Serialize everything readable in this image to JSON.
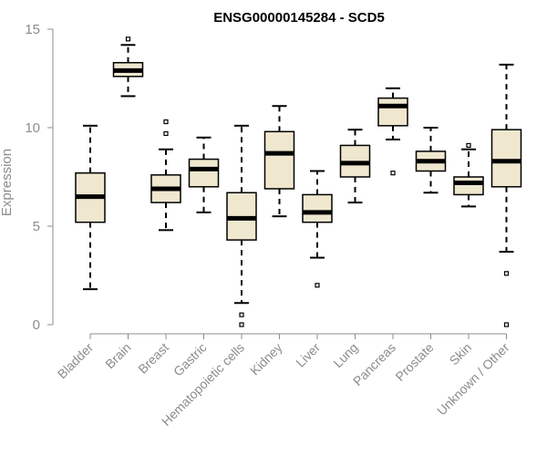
{
  "chart_data": {
    "type": "box",
    "title": "ENSG00000145284 - SCD5",
    "xlabel": "",
    "ylabel": "Expression",
    "ylim": [
      0,
      15
    ],
    "yticks": [
      0,
      5,
      10,
      15
    ],
    "grid": false,
    "colors": {
      "box_fill": "#efe8cf",
      "stroke": "#000000",
      "axis": "#8c8c8c",
      "text": "#8c8c8c"
    },
    "categories": [
      "Bladder",
      "Brain",
      "Breast",
      "Gastric",
      "Hematopoietic cells",
      "Kidney",
      "Liver",
      "Lung",
      "Pancreas",
      "Prostate",
      "Skin",
      "Unknown / Other"
    ],
    "boxes": [
      {
        "category": "Bladder",
        "min": 1.8,
        "q1": 5.2,
        "median": 6.5,
        "q3": 7.7,
        "max": 10.1,
        "outliers": []
      },
      {
        "category": "Brain",
        "min": 11.6,
        "q1": 12.6,
        "median": 12.9,
        "q3": 13.3,
        "max": 14.2,
        "outliers": [
          14.5
        ]
      },
      {
        "category": "Breast",
        "min": 4.8,
        "q1": 6.2,
        "median": 6.9,
        "q3": 7.6,
        "max": 8.9,
        "outliers": [
          10.3,
          9.7
        ]
      },
      {
        "category": "Gastric",
        "min": 5.7,
        "q1": 7.0,
        "median": 7.9,
        "q3": 8.4,
        "max": 9.5,
        "outliers": []
      },
      {
        "category": "Hematopoietic cells",
        "min": 1.1,
        "q1": 4.3,
        "median": 5.4,
        "q3": 6.7,
        "max": 10.1,
        "outliers": [
          0.5,
          0.0
        ]
      },
      {
        "category": "Kidney",
        "min": 5.5,
        "q1": 6.9,
        "median": 8.7,
        "q3": 9.8,
        "max": 11.1,
        "outliers": []
      },
      {
        "category": "Liver",
        "min": 3.4,
        "q1": 5.2,
        "median": 5.7,
        "q3": 6.6,
        "max": 7.8,
        "outliers": [
          2.0
        ]
      },
      {
        "category": "Lung",
        "min": 6.2,
        "q1": 7.5,
        "median": 8.2,
        "q3": 9.1,
        "max": 9.9,
        "outliers": []
      },
      {
        "category": "Pancreas",
        "min": 9.4,
        "q1": 10.1,
        "median": 11.1,
        "q3": 11.5,
        "max": 12.0,
        "outliers": [
          7.7
        ]
      },
      {
        "category": "Prostate",
        "min": 6.7,
        "q1": 7.8,
        "median": 8.3,
        "q3": 8.8,
        "max": 10.0,
        "outliers": []
      },
      {
        "category": "Skin",
        "min": 6.0,
        "q1": 6.6,
        "median": 7.2,
        "q3": 7.5,
        "max": 8.9,
        "outliers": [
          9.1
        ]
      },
      {
        "category": "Unknown / Other",
        "min": 3.7,
        "q1": 7.0,
        "median": 8.3,
        "q3": 9.9,
        "max": 13.2,
        "outliers": [
          2.6,
          0.0
        ]
      }
    ]
  }
}
